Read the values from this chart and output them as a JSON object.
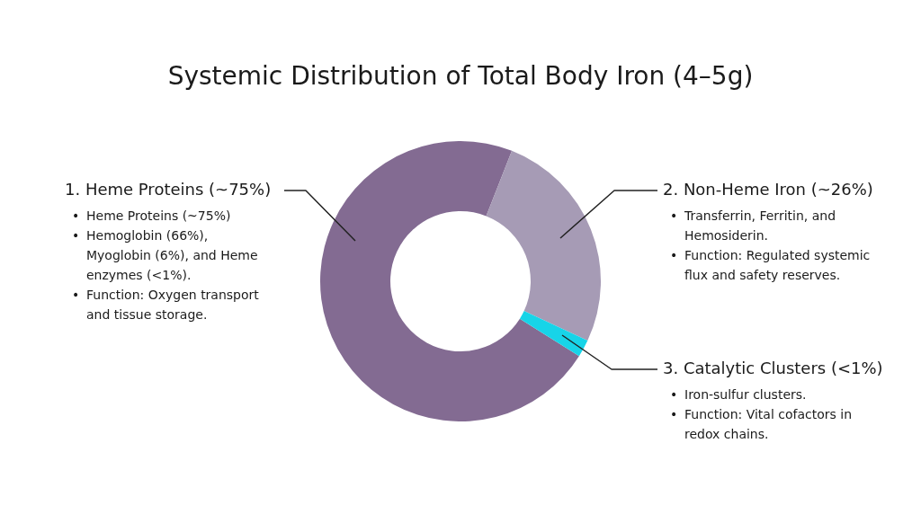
{
  "chart_data": {
    "type": "donut",
    "title": "Systemic Distribution of Total Body Iron (4–5g)",
    "categories": [
      "1. Heme Proteins (~75%)",
      "2. Non-Heme Iron (~26%)",
      "3. Catalytic Clusters (<1%)"
    ],
    "values": [
      72,
      26,
      2
    ],
    "colors": [
      "#836b92",
      "#a69bb5",
      "#17d4e8"
    ],
    "annotations": [
      "• Heme Proteins (~75%)\n• Hemoglobin (66%), Myoglobin (6%), and Heme enzymes (<1%).\n• Function: Oxygen transport and tissue storage.",
      "• Transferrin, Ferritin, and Hemosiderin.\n• Function: Regulated systemic flux and safety reserves.",
      "• Iron-sulfur clusters.\n• Function: Vital cofactors in redox chains."
    ]
  }
}
